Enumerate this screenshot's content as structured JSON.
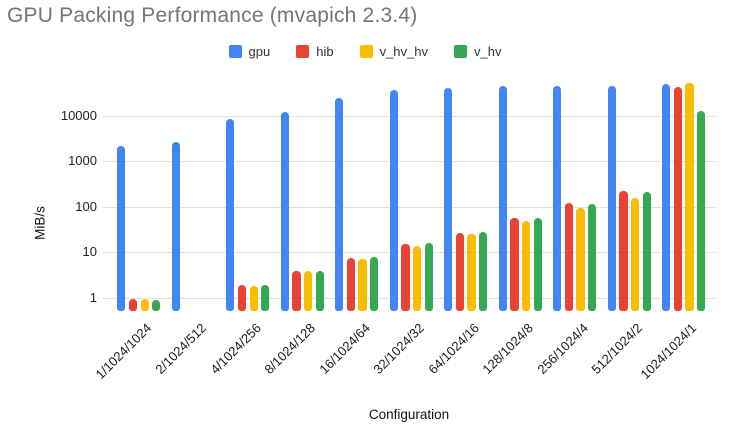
{
  "chart_data": {
    "type": "bar",
    "title": "GPU Packing Performance (mvapich 2.3.4)",
    "xlabel": "Configuration",
    "ylabel": "MiB/s",
    "y_scale": "log",
    "grid": true,
    "legend_position": "top",
    "ylim": [
      0.5,
      63000
    ],
    "y_ticks": [
      1,
      10,
      100,
      1000,
      10000
    ],
    "y_tick_labels": [
      "1",
      "10",
      "100",
      "1000",
      "10000"
    ],
    "categories": [
      "1/1024/1024",
      "2/1024/512",
      "4/1024/256",
      "8/1024/128",
      "16/1024/64",
      "32/1024/32",
      "64/1024/16",
      "128/1024/8",
      "256/1024/4",
      "512/1024/2",
      "1024/1024/1"
    ],
    "series": [
      {
        "name": "gpu",
        "color": "#4285F4",
        "values": [
          2200,
          2650,
          8300,
          12000,
          24000,
          36000,
          41000,
          44000,
          46000,
          44000,
          50000
        ]
      },
      {
        "name": "hib",
        "color": "#EA4335",
        "values": [
          0.95,
          null,
          1.9,
          3.8,
          7.5,
          15.4,
          27,
          56,
          119,
          220,
          42000
        ]
      },
      {
        "name": "v_hv_hv",
        "color": "#FBBC04",
        "values": [
          0.95,
          null,
          1.85,
          3.9,
          7.2,
          14,
          25,
          49,
          95,
          155,
          51500
        ]
      },
      {
        "name": "v_hv",
        "color": "#34A853",
        "values": [
          0.9,
          null,
          1.9,
          3.8,
          7.8,
          15.9,
          28,
          57,
          115,
          210,
          12500
        ]
      }
    ]
  }
}
